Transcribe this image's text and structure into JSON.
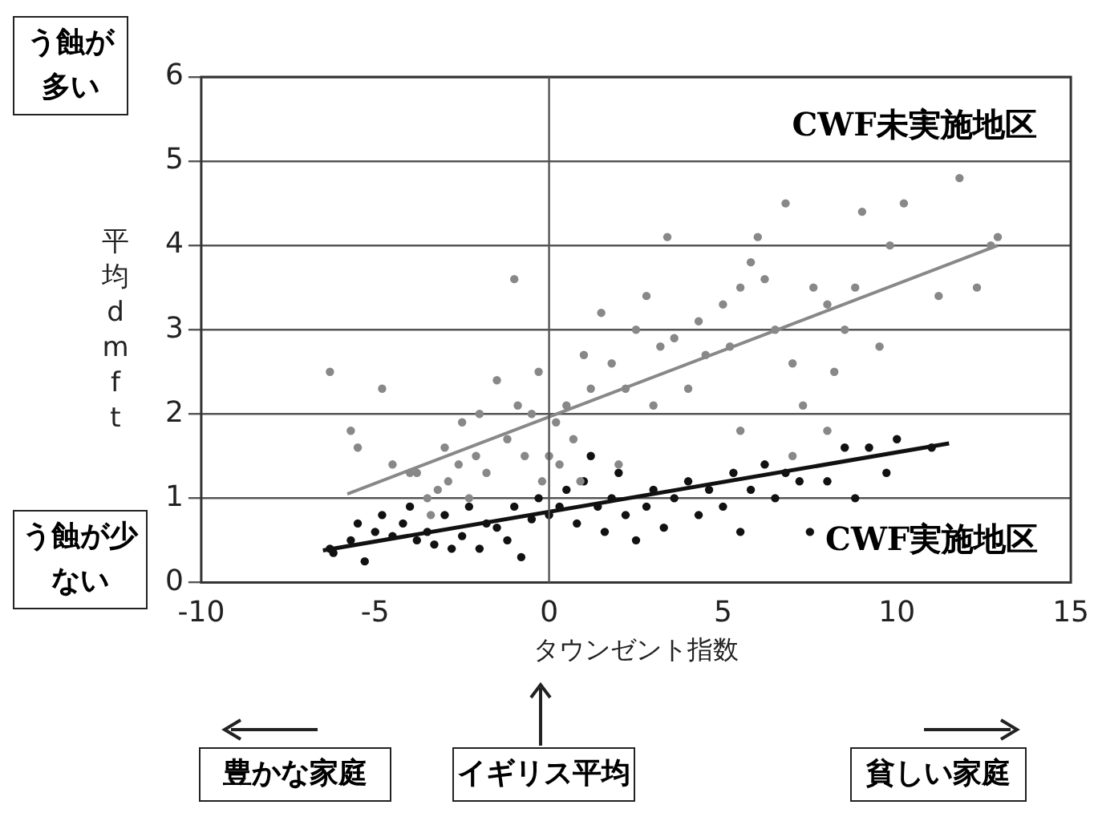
{
  "chart_data": {
    "type": "scatter",
    "xlabel": "タウンゼント指数",
    "ylabel": "平均dmft",
    "xlim": [
      -10,
      15
    ],
    "xticks": [
      -10,
      -5,
      0,
      5,
      10,
      15
    ],
    "ylim": [
      0,
      6
    ],
    "yticks": [
      0,
      1,
      2,
      3,
      4,
      5,
      6
    ],
    "grid": "y",
    "legend": false,
    "ref_lines": [
      {
        "axis": "x",
        "value": 0,
        "color": "#555555"
      }
    ],
    "annotations": [
      "う蝕が多い",
      "う蝕が少ない",
      "豊かな家庭",
      "イギリス平均",
      "貧しい家庭"
    ],
    "series": [
      {
        "name": "CWF未実施地区",
        "marker": "circle",
        "color": "#888888",
        "x": [
          -6.3,
          -5.7,
          -5.5,
          -4.8,
          -4.5,
          -4,
          -3.8,
          -3.5,
          -3.4,
          -3.2,
          -3,
          -2.9,
          -2.6,
          -2.5,
          -2.3,
          -2.1,
          -2,
          -1.8,
          -1.5,
          -1.2,
          -1,
          -0.9,
          -0.7,
          -0.5,
          -0.3,
          -0.2,
          0,
          0.2,
          0.3,
          0.5,
          0.7,
          0.9,
          1,
          1.2,
          1.5,
          1.8,
          2,
          2.2,
          2.5,
          2.8,
          3,
          3.2,
          3.4,
          3.6,
          4,
          4.3,
          4.5,
          5,
          5.2,
          5.5,
          5.8,
          6,
          6.2,
          6.5,
          6.8,
          7,
          7.3,
          7.6,
          8,
          8.2,
          8.5,
          8.8,
          9,
          9.5,
          9.8,
          10.2,
          10.8,
          11.2,
          11.8,
          12.3,
          12.7,
          12.9,
          5.5,
          7,
          8
        ],
        "values": [
          2.5,
          1.8,
          1.6,
          2.3,
          1.4,
          1.3,
          1.3,
          1,
          0.8,
          1.1,
          1.6,
          1.2,
          1.4,
          1.9,
          1,
          1.5,
          2,
          1.3,
          2.4,
          1.7,
          3.6,
          2.1,
          1.5,
          2,
          2.5,
          1.2,
          1.5,
          1.9,
          1.4,
          2.1,
          1.7,
          1.2,
          2.7,
          2.3,
          3.2,
          2.6,
          1.4,
          2.3,
          3,
          3.4,
          2.1,
          2.8,
          4.1,
          2.9,
          2.3,
          3.1,
          2.7,
          3.3,
          2.8,
          3.5,
          3.8,
          4.1,
          3.6,
          3,
          4.5,
          2.6,
          2.1,
          3.5,
          3.3,
          2.5,
          3,
          3.5,
          4.4,
          2.8,
          4,
          4.5,
          5.5,
          3.4,
          4.8,
          3.5,
          4,
          4.1,
          1.8,
          1.5,
          1.8
        ]
      },
      {
        "name": "CWF実施地区",
        "marker": "circle",
        "color": "#111111",
        "x": [
          -6.3,
          -6.2,
          -5.7,
          -5.5,
          -5.3,
          -5,
          -4.8,
          -4.5,
          -4.2,
          -3.8,
          -3.5,
          -3.3,
          -3,
          -2.8,
          -2.5,
          -2.3,
          -2,
          -1.8,
          -1.5,
          -1.2,
          -1,
          -0.8,
          -0.5,
          -0.3,
          0,
          0.3,
          0.5,
          0.8,
          1,
          1.2,
          1.4,
          1.6,
          1.8,
          2.2,
          2.5,
          2.8,
          3,
          3.3,
          3.6,
          4,
          4.3,
          4.6,
          5,
          5.3,
          5.5,
          5.8,
          6.2,
          6.5,
          6.8,
          7.2,
          7.5,
          8,
          8.5,
          8.8,
          9.2,
          9.7,
          10,
          11,
          2,
          -4
        ],
        "values": [
          0.4,
          0.35,
          0.5,
          0.7,
          0.25,
          0.6,
          0.8,
          0.55,
          0.7,
          0.5,
          0.6,
          0.45,
          0.8,
          0.4,
          0.55,
          0.9,
          0.4,
          0.7,
          0.65,
          0.5,
          0.9,
          0.3,
          0.75,
          1,
          0.8,
          0.9,
          1.1,
          0.7,
          1.2,
          1.5,
          0.9,
          0.6,
          1,
          0.8,
          0.5,
          0.9,
          1.1,
          0.65,
          1,
          1.2,
          0.8,
          1.1,
          0.9,
          1.3,
          0.6,
          1.1,
          1.4,
          1,
          1.3,
          1.2,
          0.6,
          1.2,
          1.6,
          1,
          1.6,
          1.3,
          1.7,
          1.6,
          1.3,
          0.9
        ]
      },
      {
        "type": "line",
        "marker": "none",
        "color": "#888888",
        "x": [
          -5.8,
          12.9
        ],
        "values": [
          1.05,
          4
        ]
      },
      {
        "type": "line",
        "marker": "none",
        "color": "#111111",
        "x": [
          -6.5,
          11.5
        ],
        "values": [
          0.38,
          1.65
        ]
      }
    ]
  }
}
